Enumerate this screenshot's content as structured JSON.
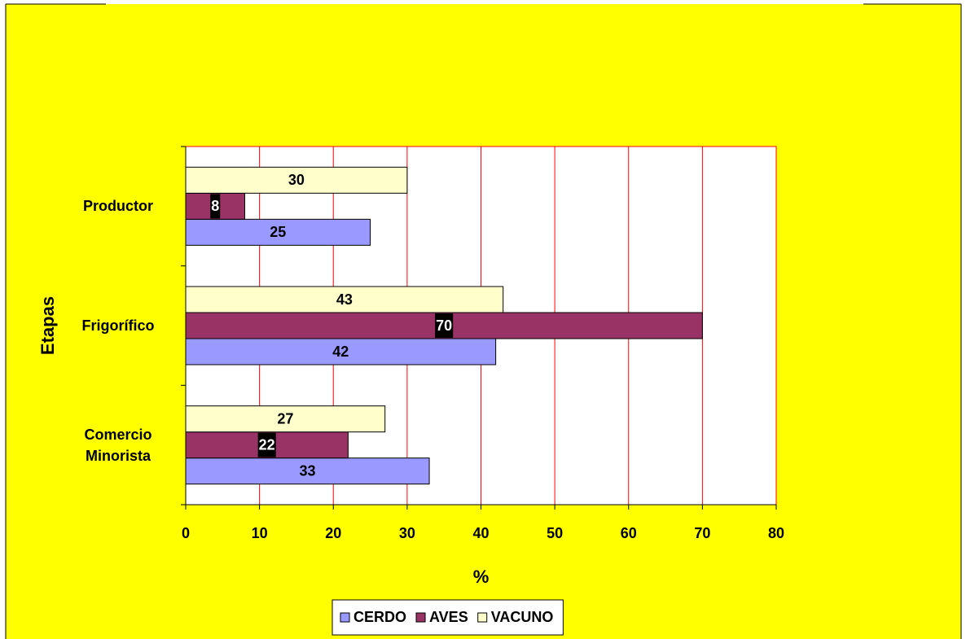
{
  "chart_data": {
    "type": "barh",
    "categories": [
      "Productor",
      "Frigorífico",
      "Comercio Minorista"
    ],
    "series": [
      {
        "name": "CERDO",
        "color": "#9999ff",
        "values": [
          25,
          42,
          33
        ]
      },
      {
        "name": "AVES",
        "color": "#993366",
        "values": [
          8,
          70,
          22
        ]
      },
      {
        "name": "VACUNO",
        "color": "#ffffcc",
        "values": [
          30,
          43,
          27
        ]
      }
    ],
    "xlim": [
      0,
      80
    ],
    "xticks": [
      0,
      10,
      20,
      30,
      40,
      50,
      60,
      70,
      80
    ],
    "x_label": "%",
    "y_label": "Etapas",
    "grid": true,
    "grid_color": "#ff0000",
    "background": "#ffff00",
    "legend": "bottom"
  }
}
